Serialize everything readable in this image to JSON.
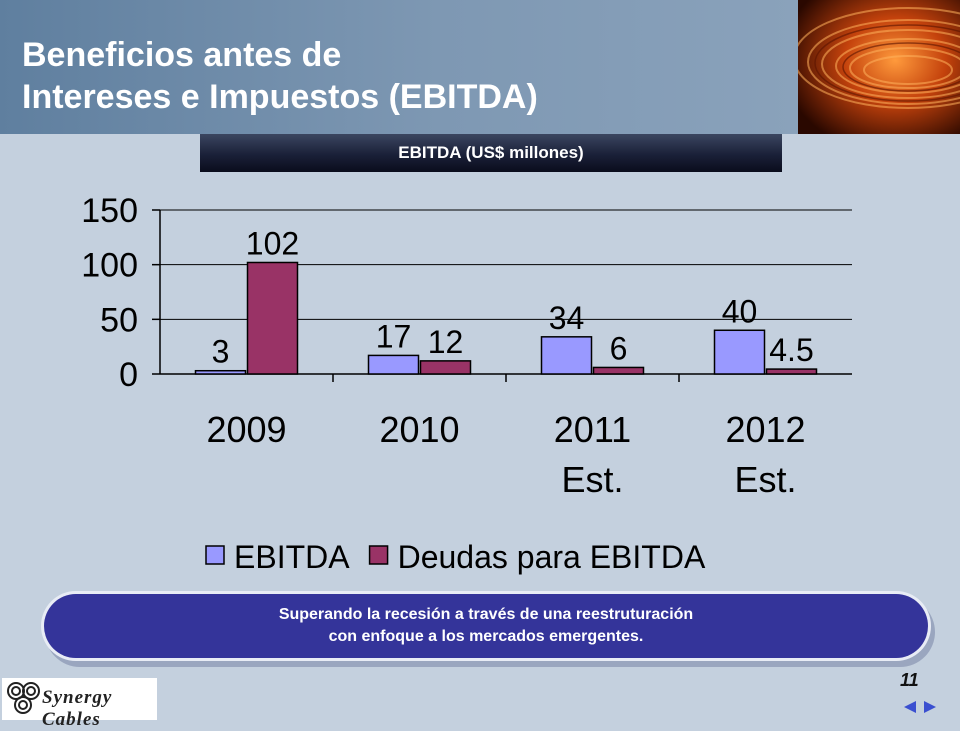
{
  "slide": {
    "title_line1": "Beneficios antes de",
    "title_line2": "Intereses e Impuestos (EBITDA)",
    "ribbon": "EBITDA (US$ millones)",
    "banner_line1": "Superando la recesión a través de una reestruturación",
    "banner_line2": "con enfoque a los mercados emergentes.",
    "page_number": "11",
    "logo_text": "Synergy Cables",
    "colors": {
      "header": "#7e98b3",
      "background": "#c4d0de",
      "banner": "#34349a",
      "ebitda": "#9999ff",
      "debt": "#993366"
    }
  },
  "chart_data": {
    "type": "bar",
    "categories": [
      [
        "2009"
      ],
      [
        "2010"
      ],
      [
        "2011",
        "Est."
      ],
      [
        "2012",
        "Est."
      ]
    ],
    "series": [
      {
        "name": "EBITDA",
        "values": [
          3,
          17,
          34,
          40
        ],
        "labels": [
          "3",
          "17",
          "34",
          "40"
        ],
        "color": "#9999ff"
      },
      {
        "name": "Deudas para EBITDA",
        "values": [
          102,
          12,
          6,
          4.5
        ],
        "labels": [
          "102",
          "12",
          "6",
          "4.5"
        ],
        "color": "#993366"
      }
    ],
    "ylim": [
      0,
      150
    ],
    "yticks": [
      0,
      50,
      100,
      150
    ],
    "grid": true,
    "legend": "bottom"
  }
}
